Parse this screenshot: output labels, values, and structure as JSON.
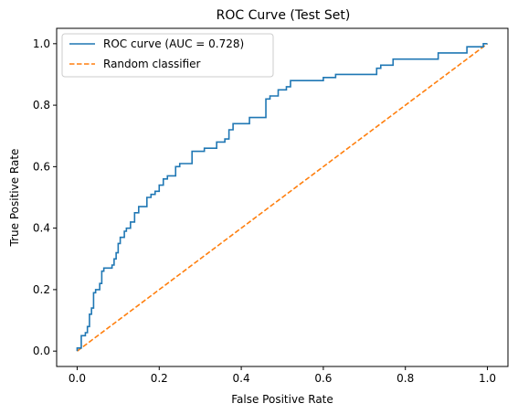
{
  "chart_data": {
    "type": "line",
    "title": "ROC Curve (Test Set)",
    "xlabel": "False Positive Rate",
    "ylabel": "True Positive Rate",
    "xlim": [
      -0.05,
      1.05
    ],
    "ylim": [
      -0.05,
      1.05
    ],
    "xticks": [
      0.0,
      0.2,
      0.4,
      0.6,
      0.8,
      1.0
    ],
    "yticks": [
      0.0,
      0.2,
      0.4,
      0.6,
      0.8,
      1.0
    ],
    "xtick_labels": [
      "0.0",
      "0.2",
      "0.4",
      "0.6",
      "0.8",
      "1.0"
    ],
    "ytick_labels": [
      "0.0",
      "0.2",
      "0.4",
      "0.6",
      "0.8",
      "1.0"
    ],
    "grid": false,
    "legend_position": "top-left",
    "series": [
      {
        "name": "ROC curve (AUC = 0.728)",
        "color": "#1f77b4",
        "style": "solid",
        "points": [
          [
            0.0,
            0.0
          ],
          [
            0.0,
            0.01
          ],
          [
            0.01,
            0.01
          ],
          [
            0.01,
            0.05
          ],
          [
            0.02,
            0.05
          ],
          [
            0.02,
            0.06
          ],
          [
            0.025,
            0.06
          ],
          [
            0.025,
            0.08
          ],
          [
            0.03,
            0.08
          ],
          [
            0.03,
            0.12
          ],
          [
            0.035,
            0.12
          ],
          [
            0.035,
            0.14
          ],
          [
            0.04,
            0.14
          ],
          [
            0.04,
            0.19
          ],
          [
            0.045,
            0.19
          ],
          [
            0.045,
            0.2
          ],
          [
            0.055,
            0.2
          ],
          [
            0.055,
            0.22
          ],
          [
            0.06,
            0.22
          ],
          [
            0.06,
            0.26
          ],
          [
            0.065,
            0.26
          ],
          [
            0.065,
            0.27
          ],
          [
            0.085,
            0.27
          ],
          [
            0.085,
            0.28
          ],
          [
            0.09,
            0.28
          ],
          [
            0.09,
            0.3
          ],
          [
            0.095,
            0.3
          ],
          [
            0.095,
            0.32
          ],
          [
            0.1,
            0.32
          ],
          [
            0.1,
            0.35
          ],
          [
            0.105,
            0.35
          ],
          [
            0.105,
            0.37
          ],
          [
            0.115,
            0.37
          ],
          [
            0.115,
            0.39
          ],
          [
            0.12,
            0.39
          ],
          [
            0.12,
            0.4
          ],
          [
            0.13,
            0.4
          ],
          [
            0.13,
            0.42
          ],
          [
            0.14,
            0.42
          ],
          [
            0.14,
            0.45
          ],
          [
            0.15,
            0.45
          ],
          [
            0.15,
            0.47
          ],
          [
            0.17,
            0.47
          ],
          [
            0.17,
            0.5
          ],
          [
            0.18,
            0.5
          ],
          [
            0.18,
            0.51
          ],
          [
            0.19,
            0.51
          ],
          [
            0.19,
            0.52
          ],
          [
            0.2,
            0.52
          ],
          [
            0.2,
            0.54
          ],
          [
            0.21,
            0.54
          ],
          [
            0.21,
            0.56
          ],
          [
            0.22,
            0.56
          ],
          [
            0.22,
            0.57
          ],
          [
            0.24,
            0.57
          ],
          [
            0.24,
            0.6
          ],
          [
            0.25,
            0.6
          ],
          [
            0.25,
            0.61
          ],
          [
            0.28,
            0.61
          ],
          [
            0.28,
            0.65
          ],
          [
            0.31,
            0.65
          ],
          [
            0.31,
            0.66
          ],
          [
            0.34,
            0.66
          ],
          [
            0.34,
            0.68
          ],
          [
            0.36,
            0.68
          ],
          [
            0.36,
            0.69
          ],
          [
            0.37,
            0.69
          ],
          [
            0.37,
            0.72
          ],
          [
            0.38,
            0.72
          ],
          [
            0.38,
            0.74
          ],
          [
            0.42,
            0.74
          ],
          [
            0.42,
            0.76
          ],
          [
            0.46,
            0.76
          ],
          [
            0.46,
            0.82
          ],
          [
            0.47,
            0.82
          ],
          [
            0.47,
            0.83
          ],
          [
            0.49,
            0.83
          ],
          [
            0.49,
            0.85
          ],
          [
            0.51,
            0.85
          ],
          [
            0.51,
            0.86
          ],
          [
            0.52,
            0.86
          ],
          [
            0.52,
            0.88
          ],
          [
            0.6,
            0.88
          ],
          [
            0.6,
            0.89
          ],
          [
            0.63,
            0.89
          ],
          [
            0.63,
            0.9
          ],
          [
            0.73,
            0.9
          ],
          [
            0.73,
            0.92
          ],
          [
            0.74,
            0.92
          ],
          [
            0.74,
            0.93
          ],
          [
            0.77,
            0.93
          ],
          [
            0.77,
            0.95
          ],
          [
            0.88,
            0.95
          ],
          [
            0.88,
            0.97
          ],
          [
            0.95,
            0.97
          ],
          [
            0.95,
            0.99
          ],
          [
            0.99,
            0.99
          ],
          [
            0.99,
            1.0
          ],
          [
            1.0,
            1.0
          ]
        ]
      },
      {
        "name": "Random classifier",
        "color": "#ff7f0e",
        "style": "dashed",
        "points": [
          [
            0.0,
            0.0
          ],
          [
            1.0,
            1.0
          ]
        ]
      }
    ]
  }
}
